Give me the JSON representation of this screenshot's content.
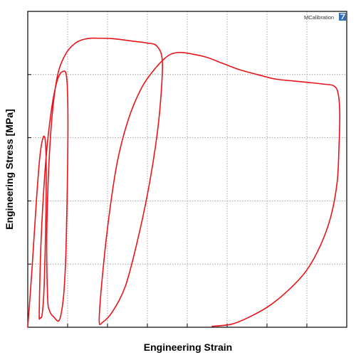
{
  "chart_data": {
    "type": "line",
    "title": "",
    "xlabel": "Engineering Strain",
    "ylabel": "Engineering Stress [MPa]",
    "xlim": [
      0,
      1
    ],
    "ylim": [
      0,
      1
    ],
    "x_ticks": [
      0,
      0.125,
      0.25,
      0.375,
      0.5,
      0.625,
      0.75,
      0.875,
      1
    ],
    "y_ticks": [
      0,
      0.2,
      0.4,
      0.6,
      0.8,
      1
    ],
    "tick_labels_shown": false,
    "grid": true,
    "legend": "none",
    "series": [
      {
        "color": "#e8141b",
        "x": [
          0.0,
          0.013,
          0.027,
          0.038,
          0.048,
          0.055,
          0.058,
          0.057,
          0.054,
          0.05,
          0.045,
          0.041,
          0.038,
          0.036,
          0.042,
          0.056,
          0.073,
          0.092,
          0.11,
          0.122,
          0.126,
          0.124,
          0.12,
          0.114,
          0.106,
          0.097,
          0.084,
          0.069,
          0.062,
          0.06,
          0.071,
          0.09,
          0.116,
          0.15,
          0.188,
          0.225,
          0.262,
          0.298,
          0.335,
          0.372,
          0.405,
          0.422,
          0.415,
          0.4,
          0.375,
          0.343,
          0.306,
          0.266,
          0.235,
          0.224,
          0.232,
          0.252,
          0.28,
          0.316,
          0.358,
          0.4,
          0.428,
          0.45,
          0.478,
          0.515,
          0.56,
          0.612,
          0.665,
          0.72,
          0.775,
          0.83,
          0.88,
          0.925,
          0.96,
          0.973,
          0.978,
          0.976,
          0.97,
          0.95,
          0.918,
          0.874,
          0.82,
          0.76,
          0.7,
          0.64,
          0.578
        ],
        "y": [
          0.0,
          0.18,
          0.4,
          0.54,
          0.6,
          0.59,
          0.5,
          0.37,
          0.22,
          0.1,
          0.04,
          0.03,
          0.03,
          0.05,
          0.28,
          0.52,
          0.68,
          0.78,
          0.81,
          0.79,
          0.66,
          0.45,
          0.25,
          0.12,
          0.05,
          0.02,
          0.03,
          0.05,
          0.1,
          0.32,
          0.6,
          0.78,
          0.86,
          0.9,
          0.914,
          0.915,
          0.914,
          0.91,
          0.905,
          0.9,
          0.89,
          0.84,
          0.7,
          0.57,
          0.42,
          0.27,
          0.13,
          0.05,
          0.016,
          0.02,
          0.14,
          0.33,
          0.52,
          0.66,
          0.76,
          0.82,
          0.85,
          0.865,
          0.87,
          0.865,
          0.855,
          0.835,
          0.815,
          0.8,
          0.786,
          0.78,
          0.775,
          0.77,
          0.764,
          0.74,
          0.68,
          0.58,
          0.46,
          0.35,
          0.26,
          0.18,
          0.12,
          0.07,
          0.035,
          0.01,
          0.003
        ]
      }
    ]
  },
  "logo": {
    "text": "MCalibration",
    "accent_color": "#2e6ebc"
  }
}
